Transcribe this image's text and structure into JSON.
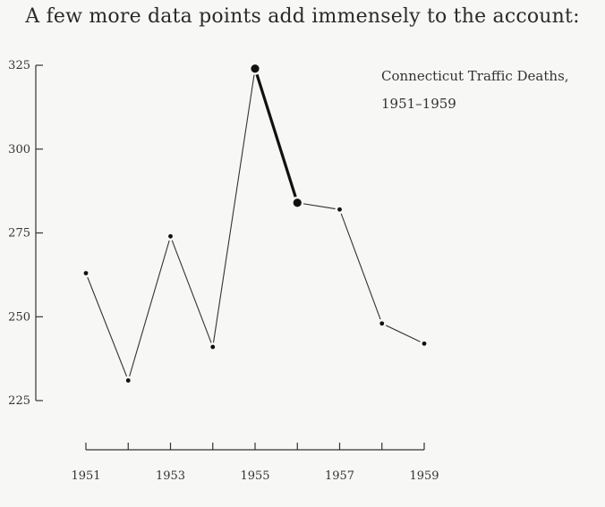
{
  "header": {
    "caption": "A few more data points add immensely to the account:"
  },
  "chart_data": {
    "type": "line",
    "title": "Connecticut Traffic Deaths,",
    "subtitle": "1951–1959",
    "xlabel": "",
    "ylabel": "",
    "x": [
      1951,
      1952,
      1953,
      1954,
      1955,
      1956,
      1957,
      1958,
      1959
    ],
    "series": [
      {
        "values": [
          263,
          231,
          274,
          241,
          324,
          284,
          282,
          248,
          242
        ]
      }
    ],
    "highlight_segment": {
      "from": 1955,
      "to": 1956
    },
    "xlim": [
      1951,
      1959
    ],
    "ylim": [
      225,
      325
    ],
    "yticks": [
      225,
      250,
      275,
      300,
      325
    ],
    "xticks": [
      1951,
      1952,
      1953,
      1954,
      1955,
      1956,
      1957,
      1958,
      1959
    ],
    "xtick_labels": [
      "1951",
      "",
      "1953",
      "",
      "1955",
      "",
      "1957",
      "",
      "1959"
    ],
    "grid": false,
    "legend": "top-right"
  }
}
